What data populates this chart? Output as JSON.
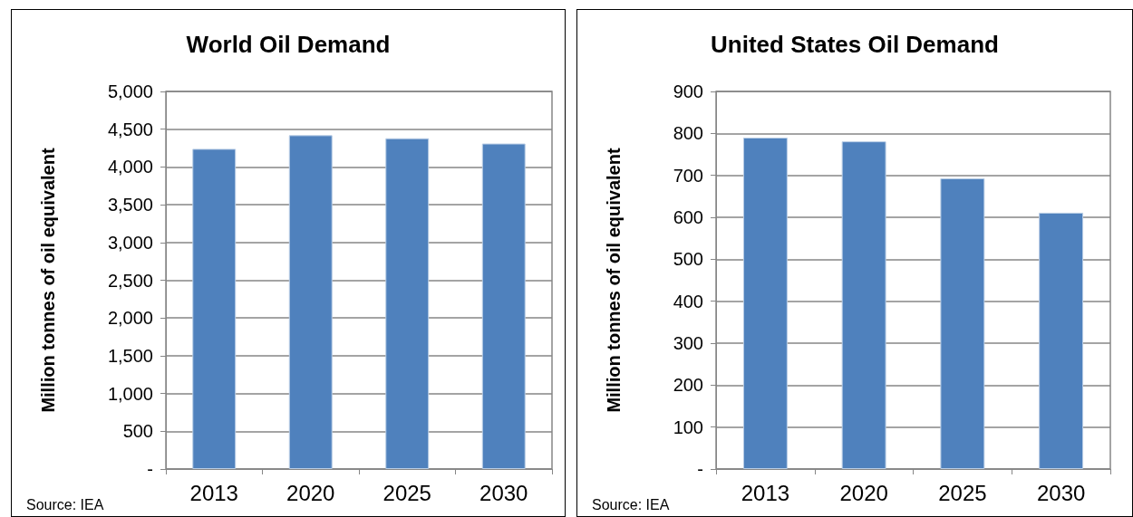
{
  "chart_data": [
    {
      "type": "bar",
      "title": "World Oil Demand",
      "ylabel": "Million tonnes of oil equivalent",
      "categories": [
        "2013",
        "2020",
        "2025",
        "2030"
      ],
      "values": [
        4240,
        4420,
        4380,
        4310
      ],
      "color": "#4f81bd",
      "ylim": [
        0,
        5000
      ],
      "yticks": [
        {
          "value": 0,
          "label": "-"
        },
        500,
        {
          "value": 1000,
          "label": "1,000"
        },
        {
          "value": 1500,
          "label": "1,500"
        },
        {
          "value": 2000,
          "label": "2,000"
        },
        {
          "value": 2500,
          "label": "2,500"
        },
        {
          "value": 3000,
          "label": "3,000"
        },
        {
          "value": 3500,
          "label": "3,500"
        },
        {
          "value": 4000,
          "label": "4,000"
        },
        {
          "value": 4500,
          "label": "4,500"
        },
        {
          "value": 5000,
          "label": "5,000"
        }
      ],
      "grid": "y",
      "annotations": [
        "Source: IEA"
      ]
    },
    {
      "type": "bar",
      "title": "United States Oil Demand",
      "ylabel": "Million tonnes of oil equivalent",
      "categories": [
        "2013",
        "2020",
        "2025",
        "2030"
      ],
      "values": [
        790,
        781,
        693,
        611
      ],
      "color": "#4f81bd",
      "ylim": [
        0,
        900
      ],
      "yticks": [
        {
          "value": 0,
          "label": "-"
        },
        100,
        200,
        300,
        400,
        500,
        600,
        700,
        800,
        900
      ],
      "grid": "y",
      "annotations": [
        "Source: IEA"
      ]
    }
  ]
}
